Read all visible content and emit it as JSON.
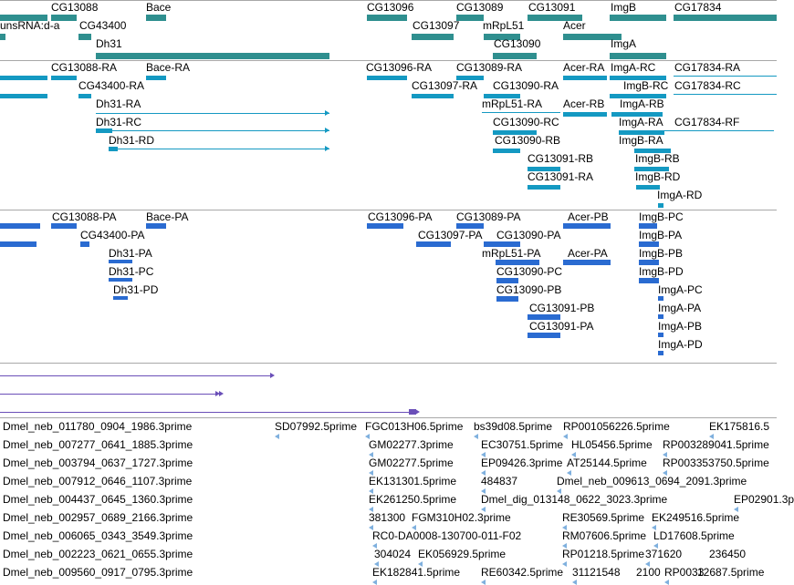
{
  "colors": {
    "gene": "#2f8f8f",
    "transcript": "#1499c2",
    "cds": "#2a6bd1",
    "synteny": "#6a4fb8",
    "est": "#7fb0de",
    "separator": "#a8a8a8"
  },
  "tracks": {
    "genes": {
      "items": [
        "CG13088",
        "Bace",
        "unsRNA:d-a",
        "CG43400",
        "Dh31",
        "CG13096",
        "CG13089",
        "CG13091",
        "ImgB",
        "CG17834",
        "CG13097",
        "mRpL51",
        "Acer",
        "CG13090",
        "ImgA"
      ]
    },
    "transcripts": {
      "items": [
        "CG13088-RA",
        "Bace-RA",
        "CG43400-RA",
        "Dh31-RA",
        "Dh31-RC",
        "Dh31-RD",
        "CG13096-RA",
        "CG13089-RA",
        "Acer-RA",
        "ImgA-RC",
        "CG17834-RA",
        "CG13097-RA",
        "CG13090-RA",
        "ImgB-RC",
        "CG17834-RC",
        "mRpL51-RA",
        "Acer-RB",
        "ImgA-RB",
        "CG13090-RC",
        "ImgA-RA",
        "CG17834-RF",
        "CG13090-RB",
        "ImgB-RA",
        "CG13091-RB",
        "ImgB-RB",
        "CG13091-RA",
        "ImgB-RD",
        "ImgA-RD"
      ]
    },
    "proteins": {
      "items": [
        "CG13088-PA",
        "Bace-PA",
        "CG43400-PA",
        "Dh31-PA",
        "Dh31-PC",
        "Dh31-PD",
        "CG13096-PA",
        "CG13089-PA",
        "Acer-PB",
        "ImgB-PC",
        "CG13097-PA",
        "CG13090-PA",
        "ImgB-PA",
        "mRpL51-PA",
        "Acer-PA",
        "ImgB-PB",
        "CG13090-PC",
        "ImgB-PD",
        "CG13090-PB",
        "ImgA-PC",
        "CG13091-PB",
        "ImgA-PA",
        "CG13091-PA",
        "ImgA-PB",
        "ImgA-PD"
      ]
    },
    "ests": {
      "items": [
        "Dmel_neb_011780_0904_1986.3prime",
        "SD07992.5prime",
        "FGC013H06.5prime",
        "bs39d08.5prime",
        "RP001056226.5prime",
        "EK175816.5",
        "Dmel_neb_007277_0641_1885.3prime",
        "GM02277.3prime",
        "EC30751.5prime",
        "HL05456.5prime",
        "RP003289041.5prime",
        "Dmel_neb_003794_0637_1727.3prime",
        "GM02277.5prime",
        "EP09426.3prime",
        "AT25144.5prime",
        "RP003353750.5prime",
        "Dmel_neb_007912_0646_1107.3prime",
        "EK131301.5prime",
        "484837",
        "Dmel_neb_009613_0694_2091.3prime",
        "Dmel_neb_004437_0645_1360.3prime",
        "EK261250.5prime",
        "Dmel_dig_013148_0622_3023.3prime",
        "EP02901.3p",
        "Dmel_neb_002957_0689_2166.3prime",
        "381300",
        "FGM310H02.3prime",
        "RE30569.5prime",
        "EK249516.5prime",
        "Dmel_neb_006065_0343_3549.3prime",
        "RC0-DA0008-130700-011-F02",
        "RM07606.5prime",
        "LD17608.5prime",
        "Dmel_neb_002223_0621_0655.3prime",
        "304024",
        "EK056929.5prime",
        "RP01218.5prime",
        "371620",
        "236450",
        "Dmel_neb_009560_0917_0795.3prime",
        "EK182841.5prime",
        "RE60342.5prime",
        "31121548",
        "2100",
        "RP0033",
        "12687.5prime"
      ]
    }
  }
}
